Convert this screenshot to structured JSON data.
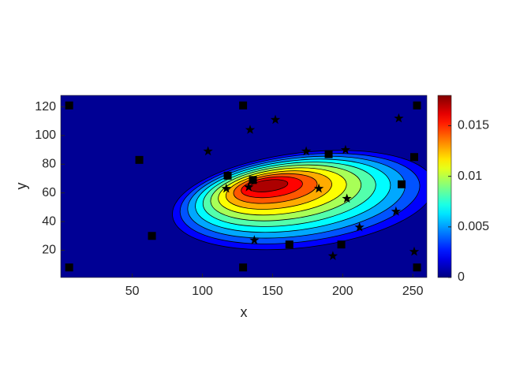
{
  "chart_data": {
    "type": "contour",
    "xlabel": "x",
    "ylabel": "y",
    "xlim": [
      -1,
      260
    ],
    "ylim": [
      1,
      128
    ],
    "xticks": [
      50,
      100,
      150,
      200,
      250
    ],
    "yticks": [
      20,
      40,
      60,
      80,
      100,
      120
    ],
    "colormap": "jet",
    "clim": [
      0,
      0.018
    ],
    "cticks": [
      0,
      0.005,
      0.01,
      0.015
    ],
    "levels": [
      0.0015,
      0.003,
      0.0045,
      0.006,
      0.0075,
      0.009,
      0.0105,
      0.012,
      0.0135,
      0.015,
      0.0165
    ],
    "markers": [
      {
        "marker": "square",
        "color": "#000000",
        "x": [
          5,
          129,
          253,
          55,
          190,
          251,
          118,
          136,
          242,
          64,
          162,
          199,
          5,
          129,
          253
        ],
        "y": [
          121,
          121,
          121,
          83,
          87,
          85,
          72,
          69,
          66,
          30,
          24,
          24,
          8,
          8,
          8
        ]
      },
      {
        "marker": "star",
        "color": "#000000",
        "x": [
          134,
          152,
          240,
          104,
          174,
          202,
          117,
          133,
          183,
          203,
          238,
          212,
          137,
          193,
          251
        ],
        "y": [
          104,
          111,
          112,
          89,
          89,
          90,
          63,
          64,
          63,
          56,
          47,
          36,
          27,
          16,
          19
        ]
      }
    ]
  }
}
